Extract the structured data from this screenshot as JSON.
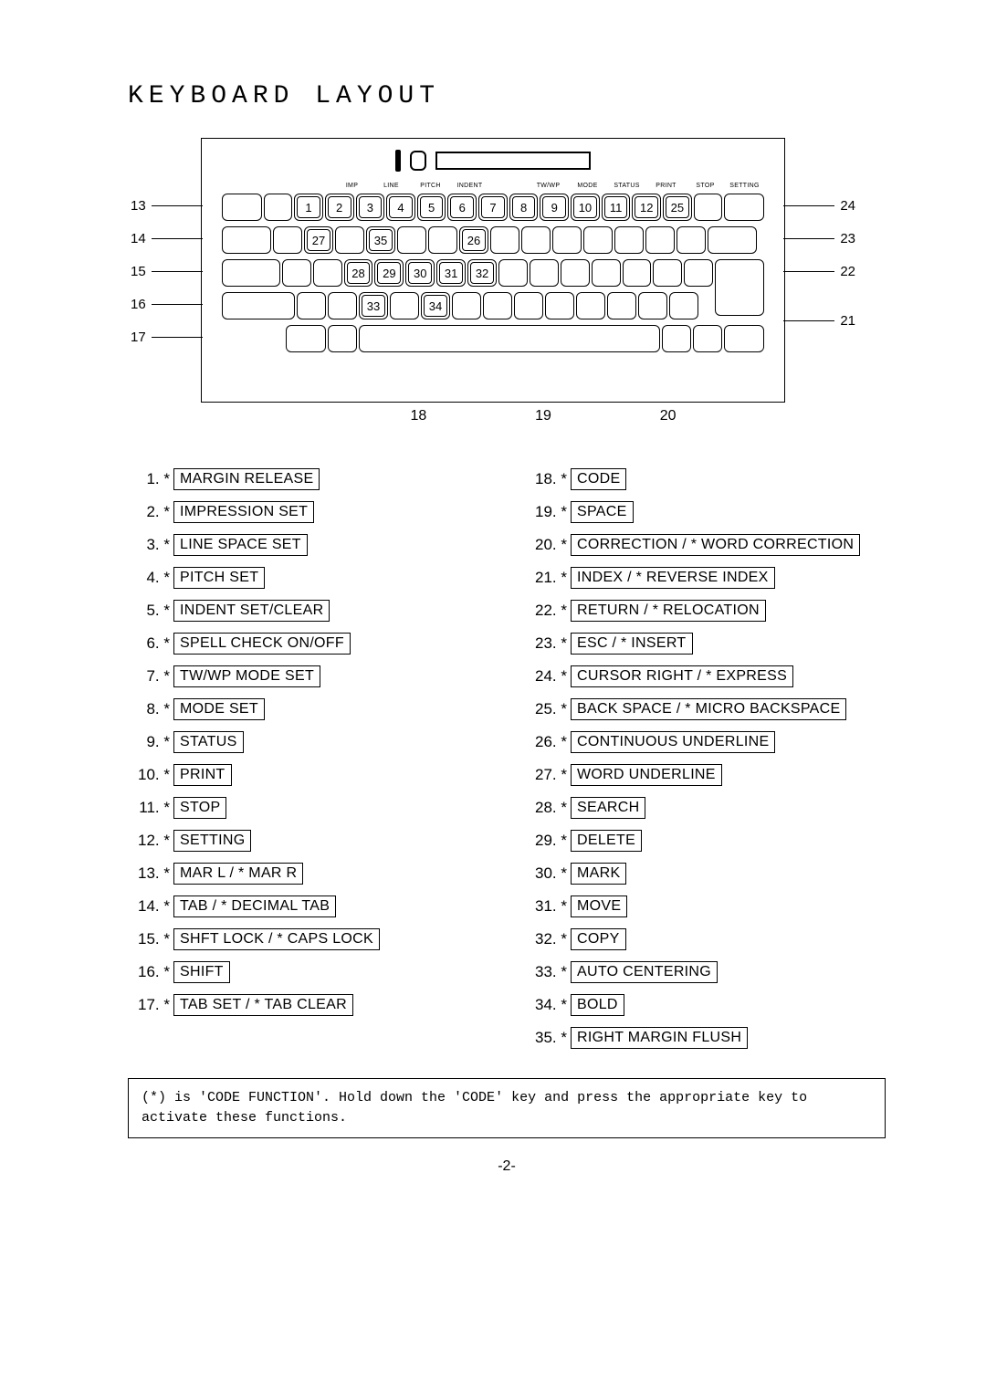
{
  "title": "KEYBOARD LAYOUT",
  "page_number": "-2-",
  "footnote": "(*) is 'CODE FUNCTION'. Hold down the 'CODE' key and press the appropriate key to activate these functions.",
  "top_labels": [
    "",
    "IMP",
    "LINE",
    "PITCH",
    "INDENT",
    "",
    "TW/WP",
    "MODE",
    "STATUS",
    "PRINT",
    "STOP",
    "SETTING"
  ],
  "left_callouts": [
    "13",
    "14",
    "15",
    "16",
    "17"
  ],
  "right_callouts": [
    "24",
    "23",
    "22",
    "21"
  ],
  "bottom_callouts": [
    "18",
    "19",
    "20"
  ],
  "row1_keys": [
    "1",
    "2",
    "3",
    "4",
    "5",
    "6",
    "7",
    "8",
    "9",
    "10",
    "11",
    "12",
    "25"
  ],
  "row2_keys_left": [
    "27",
    "",
    "35"
  ],
  "row2_center": "26",
  "row3_keys": [
    "28",
    "29",
    "30",
    "31",
    "32"
  ],
  "row4_keys": [
    "33",
    "",
    "34"
  ],
  "legend_left": [
    {
      "n": "1",
      "l": "MARGIN RELEASE"
    },
    {
      "n": "2",
      "l": "IMPRESSION SET"
    },
    {
      "n": "3",
      "l": "LINE SPACE SET"
    },
    {
      "n": "4",
      "l": "PITCH SET"
    },
    {
      "n": "5",
      "l": "INDENT SET/CLEAR"
    },
    {
      "n": "6",
      "l": "SPELL CHECK ON/OFF"
    },
    {
      "n": "7",
      "l": "TW/WP MODE SET"
    },
    {
      "n": "8",
      "l": "MODE SET"
    },
    {
      "n": "9",
      "l": "STATUS"
    },
    {
      "n": "10",
      "l": "PRINT"
    },
    {
      "n": "11",
      "l": "STOP"
    },
    {
      "n": "12",
      "l": "SETTING"
    },
    {
      "n": "13",
      "l": "MAR L / *  MAR R"
    },
    {
      "n": "14",
      "l": "TAB / *  DECIMAL TAB"
    },
    {
      "n": "15",
      "l": "SHFT LOCK / *  CAPS LOCK"
    },
    {
      "n": "16",
      "l": "SHIFT"
    },
    {
      "n": "17",
      "l": "TAB SET / *  TAB CLEAR"
    }
  ],
  "legend_right": [
    {
      "n": "18",
      "l": "CODE"
    },
    {
      "n": "19",
      "l": "SPACE"
    },
    {
      "n": "20",
      "l": "CORRECTION / *  WORD CORRECTION"
    },
    {
      "n": "21",
      "l": "INDEX / *  REVERSE INDEX"
    },
    {
      "n": "22",
      "l": "RETURN / *  RELOCATION"
    },
    {
      "n": "23",
      "l": "ESC / *  INSERT"
    },
    {
      "n": "24",
      "l": "CURSOR RIGHT / *  EXPRESS"
    },
    {
      "n": "25",
      "l": "BACK SPACE / *  MICRO BACKSPACE"
    },
    {
      "n": "26",
      "l": "CONTINUOUS UNDERLINE"
    },
    {
      "n": "27",
      "l": "WORD UNDERLINE"
    },
    {
      "n": "28",
      "l": "SEARCH"
    },
    {
      "n": "29",
      "l": "DELETE"
    },
    {
      "n": "30",
      "l": "MARK"
    },
    {
      "n": "31",
      "l": "MOVE"
    },
    {
      "n": "32",
      "l": "COPY"
    },
    {
      "n": "33",
      "l": "AUTO CENTERING"
    },
    {
      "n": "34",
      "l": "BOLD"
    },
    {
      "n": "35",
      "l": "RIGHT MARGIN FLUSH"
    }
  ]
}
